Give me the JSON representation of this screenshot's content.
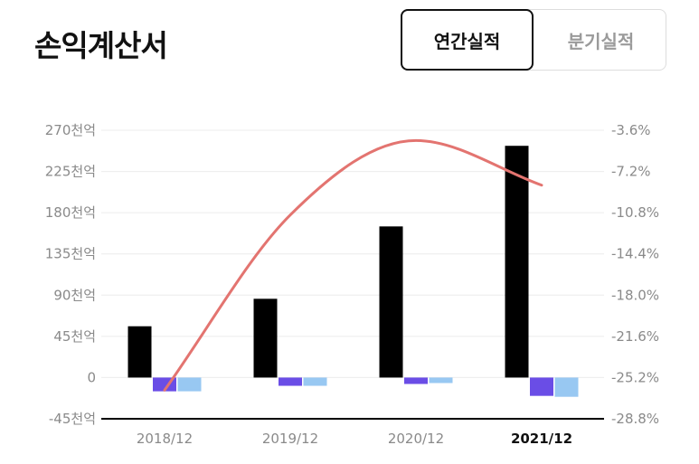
{
  "header": {
    "title": "손익계산서",
    "tabs": [
      {
        "label": "연간실적",
        "active": true
      },
      {
        "label": "분기실적",
        "active": false
      }
    ]
  },
  "chart_data": {
    "type": "bar",
    "categories": [
      "2018/12",
      "2019/12",
      "2020/12",
      "2021/12"
    ],
    "active_category": "2021/12",
    "y_left": {
      "ticks": [
        "270천억",
        "225천억",
        "180천억",
        "135천억",
        "90천억",
        "45천억",
        "0",
        "-45천억"
      ],
      "values": [
        270,
        225,
        180,
        135,
        90,
        45,
        0,
        -45
      ],
      "ylim": [
        -45,
        270
      ]
    },
    "y_right": {
      "ticks": [
        "-3.6%",
        "-7.2%",
        "-10.8%",
        "-14.4%",
        "-18.0%",
        "-21.6%",
        "-25.2%",
        "-28.8%"
      ],
      "values": [
        -3.6,
        -7.2,
        -10.8,
        -14.4,
        -18.0,
        -21.6,
        -25.2,
        -28.8
      ],
      "ylim": [
        -28.8,
        -3.6
      ]
    },
    "series": [
      {
        "color": "#000000",
        "axis": "left",
        "kind": "bar",
        "values": [
          56,
          86,
          165,
          253
        ]
      },
      {
        "color": "#6a4de6",
        "axis": "left",
        "kind": "bar",
        "values": [
          -15,
          -9,
          -7,
          -20
        ]
      },
      {
        "color": "#98c8f2",
        "axis": "left",
        "kind": "bar",
        "values": [
          -15,
          -9,
          -6,
          -21
        ]
      },
      {
        "color": "#e37470",
        "axis": "right",
        "kind": "line",
        "values": [
          -26.3,
          -11.0,
          -4.5,
          -8.4
        ]
      }
    ],
    "grid": true,
    "colors": {
      "axis_line": "#000000",
      "gridline": "#ececec",
      "tick_text": "#8a8a8a"
    }
  }
}
